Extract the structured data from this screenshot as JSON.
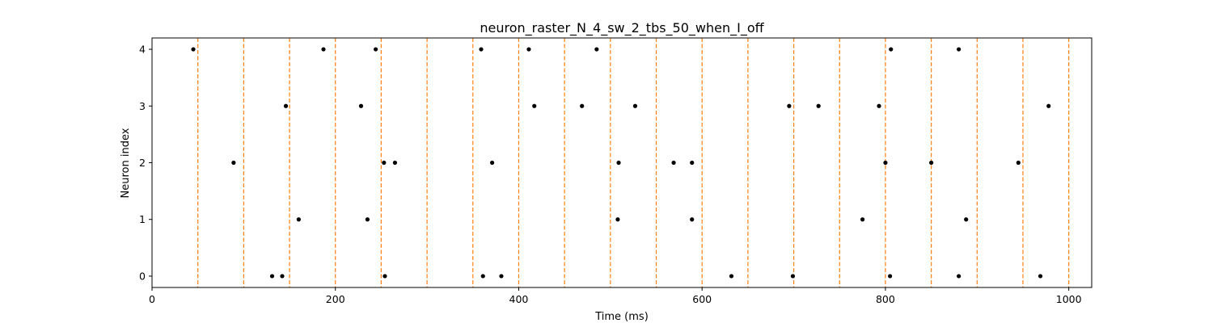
{
  "chart_data": {
    "type": "scatter",
    "title": "neuron_raster_N_4_sw_2_tbs_50_when_I_off",
    "xlabel": "Time (ms)",
    "ylabel": "Neuron index",
    "xlim": [
      0,
      1025
    ],
    "ylim": [
      -0.2,
      4.2
    ],
    "x_ticks": [
      0,
      200,
      400,
      600,
      800,
      1000
    ],
    "y_ticks": [
      0,
      1,
      2,
      3,
      4
    ],
    "grid": false,
    "colors": {
      "spike": "#000000",
      "marker_line": "#ff7f0e"
    },
    "markers": [
      50,
      100,
      150,
      200,
      250,
      300,
      350,
      400,
      450,
      500,
      550,
      600,
      650,
      700,
      750,
      800,
      850,
      900,
      950,
      1000
    ],
    "series": [
      {
        "neuron": 4,
        "x": [
          45,
          187,
          244,
          359,
          411,
          485,
          806,
          880
        ]
      },
      {
        "neuron": 3,
        "x": [
          146,
          228,
          417,
          469,
          527,
          695,
          727,
          793,
          978
        ]
      },
      {
        "neuron": 2,
        "x": [
          89,
          253,
          265,
          371,
          509,
          569,
          589,
          800,
          850,
          945
        ]
      },
      {
        "neuron": 1,
        "x": [
          160,
          235,
          508,
          589,
          775,
          888
        ]
      },
      {
        "neuron": 0,
        "x": [
          131,
          142,
          254,
          361,
          381,
          632,
          699,
          805,
          880,
          969
        ]
      }
    ]
  }
}
